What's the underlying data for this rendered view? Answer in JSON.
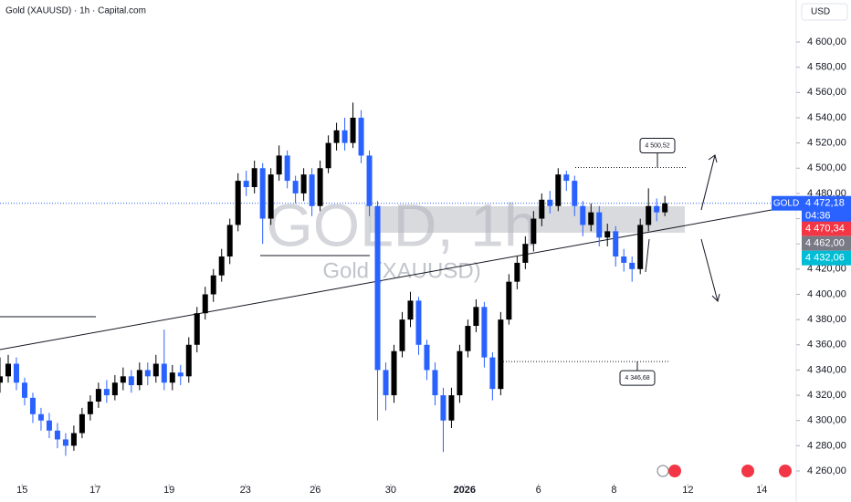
{
  "chart_data": {
    "type": "candlestick",
    "title": "Gold (XAUUSD) · 1h · Capital.com",
    "currency": "USD",
    "watermark": "GOLD, 1h",
    "watermark_subtitle": "Gold (XAUUSD)",
    "symbol": "GOLD",
    "countdown": "04:36",
    "up_color": "#000000",
    "down_color": "#2962ff",
    "xlim": [
      0,
      97
    ],
    "ylim": [
      4235.4,
      4633.3
    ],
    "xticks": [
      {
        "value": 2.7,
        "label": "15"
      },
      {
        "value": 11.6,
        "label": "17"
      },
      {
        "value": 20.6,
        "label": "19"
      },
      {
        "value": 29.9,
        "label": "23"
      },
      {
        "value": 38.4,
        "label": "26"
      },
      {
        "value": 47.6,
        "label": "30"
      },
      {
        "value": 56.6,
        "label": "2026"
      },
      {
        "value": 65.6,
        "label": "6"
      },
      {
        "value": 74.8,
        "label": "8"
      },
      {
        "value": 83.8,
        "label": "12"
      },
      {
        "value": 92.8,
        "label": "14"
      }
    ],
    "yticks": [
      {
        "value": 4260,
        "label": "4 260,00"
      },
      {
        "value": 4280,
        "label": "4 280,00"
      },
      {
        "value": 4300,
        "label": "4 300,00"
      },
      {
        "value": 4320,
        "label": "4 320,00"
      },
      {
        "value": 4340,
        "label": "4 340,00"
      },
      {
        "value": 4360,
        "label": "4 360,00"
      },
      {
        "value": 4380,
        "label": "4 380,00"
      },
      {
        "value": 4400,
        "label": "4 400,00"
      },
      {
        "value": 4420,
        "label": "4 420,00"
      },
      {
        "value": 4440,
        "label": "4 440,00"
      },
      {
        "value": 4460,
        "label": "4 460,00"
      },
      {
        "value": 4480,
        "label": "4 480,00"
      },
      {
        "value": 4500,
        "label": "4 500,00"
      },
      {
        "value": 4520,
        "label": "4 520,00"
      },
      {
        "value": 4540,
        "label": "4 540,00"
      },
      {
        "value": 4560,
        "label": "4 560,00"
      },
      {
        "value": 4580,
        "label": "4 580,00"
      },
      {
        "value": 4600,
        "label": "4 600,00"
      }
    ],
    "open": [
      4330,
      4335,
      4345,
      4330,
      4318,
      4305,
      4300,
      4292,
      4285,
      4280,
      4290,
      4305,
      4315,
      4325,
      4320,
      4330,
      4335,
      4328,
      4340,
      4335,
      4345,
      4330,
      4338,
      4335,
      4360,
      4385,
      4400,
      4415,
      4430,
      4455,
      4490,
      4485,
      4500,
      4460,
      4495,
      4510,
      4490,
      4480,
      4495,
      4470,
      4500,
      4520,
      4530,
      4520,
      4540,
      4510,
      4470,
      4340,
      4320,
      4355,
      4380,
      4395,
      4360,
      4340,
      4320,
      4300,
      4320,
      4355,
      4375,
      4390,
      4350,
      4325,
      4380,
      4410,
      4425,
      4440,
      4460,
      4475,
      4470,
      4495,
      4490,
      4470,
      4455,
      4465,
      4445,
      4450,
      4430,
      4425,
      4420,
      4455,
      4470,
      4465
    ],
    "high": [
      4350,
      4352,
      4350,
      4334,
      4322,
      4310,
      4306,
      4298,
      4290,
      4296,
      4310,
      4320,
      4330,
      4332,
      4336,
      4342,
      4340,
      4346,
      4346,
      4352,
      4372,
      4344,
      4344,
      4366,
      4390,
      4406,
      4420,
      4436,
      4460,
      4496,
      4498,
      4506,
      4504,
      4500,
      4518,
      4514,
      4494,
      4500,
      4500,
      4506,
      4526,
      4536,
      4540,
      4552,
      4546,
      4514,
      4474,
      4346,
      4360,
      4386,
      4402,
      4398,
      4364,
      4346,
      4326,
      4326,
      4360,
      4380,
      4396,
      4394,
      4354,
      4386,
      4416,
      4430,
      4446,
      4466,
      4480,
      4482,
      4500,
      4498,
      4494,
      4474,
      4472,
      4470,
      4456,
      4454,
      4436,
      4430,
      4460,
      4484,
      4476,
      4478
    ],
    "low": [
      4322,
      4330,
      4324,
      4312,
      4298,
      4292,
      4286,
      4278,
      4272,
      4276,
      4286,
      4300,
      4310,
      4314,
      4316,
      4324,
      4322,
      4324,
      4328,
      4330,
      4324,
      4324,
      4328,
      4330,
      4354,
      4380,
      4394,
      4410,
      4424,
      4450,
      4478,
      4480,
      4440,
      4455,
      4490,
      4484,
      4472,
      4474,
      4462,
      4466,
      4496,
      4514,
      4514,
      4516,
      4504,
      4462,
      4300,
      4308,
      4314,
      4350,
      4374,
      4352,
      4332,
      4312,
      4275,
      4294,
      4314,
      4350,
      4370,
      4342,
      4316,
      4320,
      4376,
      4404,
      4420,
      4434,
      4454,
      4464,
      4466,
      4482,
      4462,
      4446,
      4450,
      4438,
      4438,
      4422,
      4418,
      4410,
      4416,
      4450,
      4458,
      4462
    ],
    "close": [
      4335,
      4345,
      4330,
      4318,
      4305,
      4300,
      4292,
      4285,
      4280,
      4290,
      4305,
      4315,
      4325,
      4320,
      4330,
      4335,
      4328,
      4340,
      4335,
      4345,
      4330,
      4338,
      4335,
      4360,
      4385,
      4400,
      4415,
      4430,
      4455,
      4490,
      4485,
      4500,
      4460,
      4495,
      4510,
      4490,
      4480,
      4495,
      4470,
      4500,
      4520,
      4530,
      4520,
      4540,
      4510,
      4470,
      4340,
      4320,
      4355,
      4380,
      4395,
      4360,
      4340,
      4320,
      4300,
      4320,
      4355,
      4375,
      4390,
      4350,
      4325,
      4380,
      4410,
      4425,
      4440,
      4460,
      4475,
      4470,
      4495,
      4490,
      4470,
      4455,
      4465,
      4445,
      4450,
      4430,
      4425,
      4420,
      4455,
      4470,
      4465,
      4472.18
    ],
    "last_price": {
      "value": 4472.18,
      "label": "4 472,18"
    },
    "price_tags": [
      {
        "value": 4470.34,
        "label": "4 470,34",
        "color": "#f23645"
      },
      {
        "value": 4462.0,
        "label": "4 462,00",
        "color": "#787b86"
      },
      {
        "value": 4432.06,
        "label": "4 432,06",
        "color": "#00bcd4"
      }
    ],
    "annotations": [
      {
        "value": 4500.52,
        "label": "4 500,52"
      },
      {
        "value": 4346.68,
        "label": "4 346,68"
      }
    ]
  }
}
